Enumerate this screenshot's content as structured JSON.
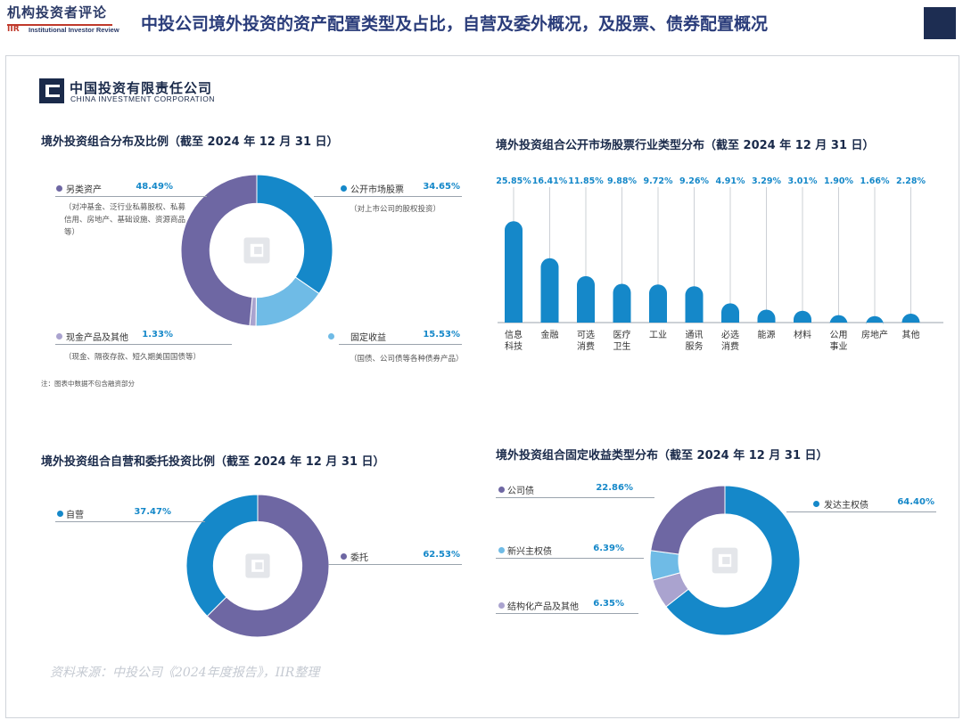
{
  "header": {
    "logo_cn": "机构投资者评论",
    "logo_iir": "IIR",
    "logo_en": "Institutional Investor Review",
    "title": "中投公司境外投资的资产配置类型及占比，自营及委外概况，及股票、债券配置概况"
  },
  "cic": {
    "name_cn": "中国投资有限责任公司",
    "name_en": "CHINA INVESTMENT CORPORATION"
  },
  "note": "注：图表中数据不包含融资部分",
  "footer": "资料来源：中投公司《2024年度报告》，IIR整理",
  "colors": {
    "dark_blue": "#1588c9",
    "purple": "#6e67a3",
    "light_blue": "#6fbbe6",
    "lavender": "#aaa3cf"
  },
  "chart_data": [
    {
      "type": "pie",
      "title": "境外投资组合分布及比例（截至 2024 年 12 月 31 日）",
      "categories": [
        "公开市场股票",
        "固定收益",
        "现金产品及其他",
        "另类资产"
      ],
      "values": [
        34.65,
        15.53,
        1.33,
        48.49
      ],
      "value_labels": [
        "34.65%",
        "15.53%",
        "1.33%",
        "48.49%"
      ],
      "notes": [
        "（对上市公司的股权投资）",
        "（国债、公司债等各种债券产品）",
        "（现金、隔夜存款、短久期美国国债等）",
        "（对冲基金、泛行业私募股权、私募信用、房地产、基础设施、资源商品等）"
      ]
    },
    {
      "type": "bar",
      "title": "境外投资组合公开市场股票行业类型分布（截至 2024 年 12 月 31 日）",
      "categories": [
        "信息科技",
        "金融",
        "可选消费",
        "医疗卫生",
        "工业",
        "通讯服务",
        "必选消费",
        "能源",
        "材料",
        "公用事业",
        "房地产",
        "其他"
      ],
      "tick_labels": [
        [
          "信息",
          "科技"
        ],
        [
          "金融"
        ],
        [
          "可选",
          "消费"
        ],
        [
          "医疗",
          "卫生"
        ],
        [
          "工业"
        ],
        [
          "通讯",
          "服务"
        ],
        [
          "必选",
          "消费"
        ],
        [
          "能源"
        ],
        [
          "材料"
        ],
        [
          "公用",
          "事业"
        ],
        [
          "房地产"
        ],
        [
          "其他"
        ]
      ],
      "values": [
        25.85,
        16.41,
        11.85,
        9.88,
        9.72,
        9.26,
        4.91,
        3.29,
        3.01,
        1.9,
        1.66,
        2.28
      ],
      "value_labels": [
        "25.85%",
        "16.41%",
        "11.85%",
        "9.88%",
        "9.72%",
        "9.26%",
        "4.91%",
        "3.29%",
        "3.01%",
        "1.90%",
        "1.66%",
        "2.28%"
      ]
    },
    {
      "type": "pie",
      "title": "境外投资组合自营和委托投资比例（截至 2024 年 12 月 31 日）",
      "categories": [
        "委托",
        "自营"
      ],
      "values": [
        62.53,
        37.47
      ],
      "value_labels": [
        "62.53%",
        "37.47%"
      ]
    },
    {
      "type": "pie",
      "title": "境外投资组合固定收益类型分布（截至 2024 年 12 月 31 日）",
      "categories": [
        "发达主权债",
        "结构化产品及其他",
        "新兴主权债",
        "公司债"
      ],
      "values": [
        64.4,
        6.35,
        6.39,
        22.86
      ],
      "value_labels": [
        "64.40%",
        "6.35%",
        "6.39%",
        "22.86%"
      ]
    }
  ]
}
